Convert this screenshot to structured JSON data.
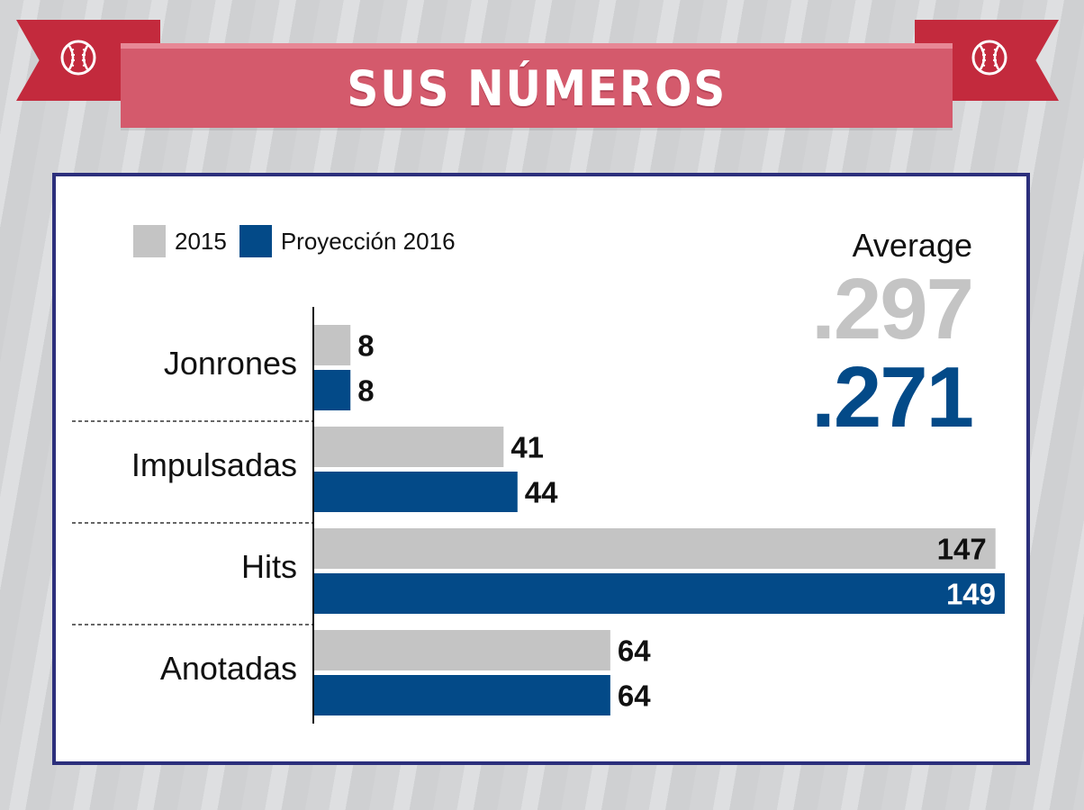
{
  "header": {
    "title": "SUS NÚMEROS"
  },
  "icons": {
    "left": "baseball-icon",
    "right": "baseball-icon"
  },
  "colors": {
    "series_2015": "#c4c4c4",
    "series_2016": "#034a88",
    "banner": "#d45a6c",
    "ribbon": "#c32a3d",
    "panel_border": "#2c2f7c"
  },
  "legend": {
    "item_2015": "2015",
    "item_2016": "Proyección 2016"
  },
  "average": {
    "label": "Average",
    "value_2015": ".297",
    "value_2016": ".271"
  },
  "chart_data": {
    "type": "bar",
    "orientation": "horizontal",
    "categories": [
      "Jonrones",
      "Impulsadas",
      "Hits",
      "Anotadas"
    ],
    "series": [
      {
        "name": "2015",
        "values": [
          8,
          41,
          147,
          64
        ]
      },
      {
        "name": "Proyección 2016",
        "values": [
          8,
          44,
          149,
          64
        ]
      }
    ],
    "xlim": [
      0,
      149
    ],
    "grid": false,
    "legend_position": "top-left"
  }
}
